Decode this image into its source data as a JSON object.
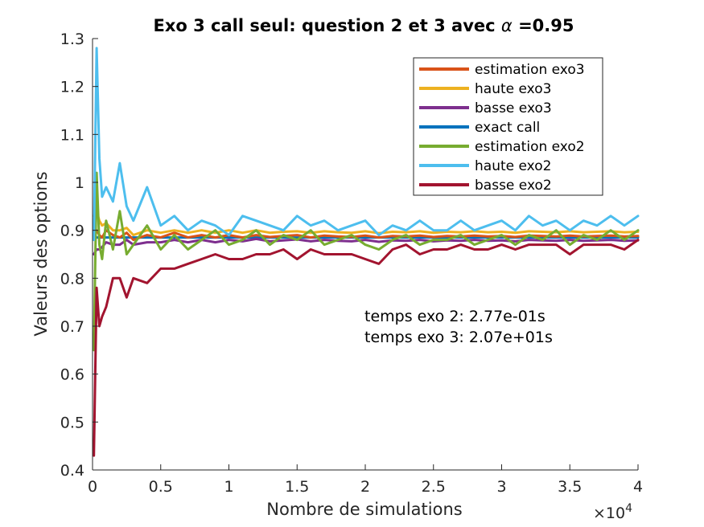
{
  "chart_data": {
    "type": "line",
    "title_main": "Exo 3 call seul: question 2 et 3 avec ",
    "title_symbol": "α",
    "title_tail": " =0.95",
    "xlabel": "Nombre de simulations",
    "ylabel": "Valeurs des options",
    "x_multiplier_base": "×10",
    "x_multiplier_exp": "4",
    "xlim": [
      0,
      40000
    ],
    "ylim": [
      0.4,
      1.3
    ],
    "x_ticks": [
      0,
      5000,
      10000,
      15000,
      20000,
      25000,
      30000,
      35000,
      40000
    ],
    "x_tick_labels": [
      "0",
      "0.5",
      "1",
      "1.5",
      "2",
      "2.5",
      "3",
      "3.5",
      "4"
    ],
    "y_ticks": [
      0.4,
      0.5,
      0.6,
      0.7,
      0.8,
      0.9,
      1.0,
      1.1,
      1.2,
      1.3
    ],
    "y_tick_labels": [
      "0.4",
      "0.5",
      "0.6",
      "0.7",
      "0.8",
      "0.9",
      "1",
      "1.1",
      "1.2",
      "1.3"
    ],
    "grid": false,
    "legend_position": "top-right",
    "annotations": [
      "temps exo 2: 2.77e-01s",
      "temps exo 3: 2.07e+01s"
    ],
    "x": [
      100,
      300,
      500,
      700,
      1000,
      1500,
      2000,
      2500,
      3000,
      4000,
      5000,
      6000,
      7000,
      8000,
      9000,
      10000,
      11000,
      12000,
      13000,
      14000,
      15000,
      16000,
      17000,
      18000,
      19000,
      20000,
      21000,
      22000,
      23000,
      24000,
      25000,
      26000,
      27000,
      28000,
      29000,
      30000,
      31000,
      32000,
      33000,
      34000,
      35000,
      36000,
      37000,
      38000,
      39000,
      40000
    ],
    "series": [
      {
        "name": "estimation exo3",
        "color": "#D95319",
        "values": [
          0.88,
          0.9,
          0.89,
          0.885,
          0.9,
          0.89,
          0.885,
          0.895,
          0.88,
          0.89,
          0.885,
          0.895,
          0.885,
          0.89,
          0.885,
          0.89,
          0.885,
          0.89,
          0.886,
          0.888,
          0.89,
          0.885,
          0.889,
          0.887,
          0.886,
          0.889,
          0.885,
          0.888,
          0.887,
          0.889,
          0.886,
          0.888,
          0.887,
          0.889,
          0.887,
          0.888,
          0.886,
          0.889,
          0.888,
          0.887,
          0.889,
          0.887,
          0.888,
          0.889,
          0.887,
          0.888
        ]
      },
      {
        "name": "haute exo3",
        "color": "#EDB120",
        "values": [
          0.93,
          0.94,
          0.92,
          0.91,
          0.915,
          0.9,
          0.9,
          0.905,
          0.89,
          0.9,
          0.895,
          0.9,
          0.895,
          0.9,
          0.895,
          0.9,
          0.895,
          0.9,
          0.895,
          0.897,
          0.898,
          0.895,
          0.898,
          0.896,
          0.895,
          0.898,
          0.894,
          0.897,
          0.896,
          0.898,
          0.895,
          0.897,
          0.896,
          0.898,
          0.896,
          0.897,
          0.895,
          0.898,
          0.897,
          0.896,
          0.898,
          0.896,
          0.897,
          0.898,
          0.896,
          0.897
        ]
      },
      {
        "name": "basse exo3",
        "color": "#7E2F8E",
        "values": [
          0.85,
          0.86,
          0.86,
          0.865,
          0.875,
          0.87,
          0.87,
          0.88,
          0.87,
          0.875,
          0.875,
          0.88,
          0.875,
          0.88,
          0.875,
          0.88,
          0.877,
          0.882,
          0.877,
          0.879,
          0.881,
          0.877,
          0.88,
          0.878,
          0.877,
          0.88,
          0.876,
          0.879,
          0.878,
          0.88,
          0.877,
          0.879,
          0.878,
          0.88,
          0.878,
          0.879,
          0.877,
          0.88,
          0.879,
          0.878,
          0.88,
          0.878,
          0.879,
          0.88,
          0.878,
          0.879
        ]
      },
      {
        "name": "exact call",
        "color": "#0072BD",
        "values": [
          0.885,
          0.885,
          0.885,
          0.885,
          0.885,
          0.885,
          0.885,
          0.885,
          0.885,
          0.885,
          0.885,
          0.885,
          0.885,
          0.885,
          0.885,
          0.885,
          0.885,
          0.885,
          0.885,
          0.885,
          0.885,
          0.885,
          0.885,
          0.885,
          0.885,
          0.885,
          0.885,
          0.885,
          0.885,
          0.885,
          0.885,
          0.885,
          0.885,
          0.885,
          0.885,
          0.885,
          0.885,
          0.885,
          0.885,
          0.885,
          0.885,
          0.885,
          0.885,
          0.885,
          0.885,
          0.885
        ]
      },
      {
        "name": "estimation exo2",
        "color": "#77AC30",
        "values": [
          0.65,
          1.02,
          0.87,
          0.84,
          0.92,
          0.86,
          0.94,
          0.85,
          0.87,
          0.91,
          0.86,
          0.89,
          0.86,
          0.88,
          0.9,
          0.87,
          0.88,
          0.9,
          0.87,
          0.89,
          0.88,
          0.9,
          0.87,
          0.88,
          0.89,
          0.87,
          0.86,
          0.88,
          0.89,
          0.87,
          0.88,
          0.88,
          0.89,
          0.87,
          0.88,
          0.89,
          0.87,
          0.89,
          0.88,
          0.9,
          0.87,
          0.89,
          0.88,
          0.9,
          0.88,
          0.9
        ]
      },
      {
        "name": "haute exo2",
        "color": "#4DBEEE",
        "values": [
          0.88,
          1.28,
          1.05,
          0.97,
          0.99,
          0.96,
          1.04,
          0.95,
          0.92,
          0.99,
          0.91,
          0.93,
          0.9,
          0.92,
          0.91,
          0.89,
          0.93,
          0.92,
          0.91,
          0.9,
          0.93,
          0.91,
          0.92,
          0.9,
          0.91,
          0.92,
          0.89,
          0.91,
          0.9,
          0.92,
          0.9,
          0.9,
          0.92,
          0.9,
          0.91,
          0.92,
          0.9,
          0.93,
          0.91,
          0.92,
          0.9,
          0.92,
          0.91,
          0.93,
          0.91,
          0.93
        ]
      },
      {
        "name": "basse exo2",
        "color": "#A2142F",
        "values": [
          0.43,
          0.78,
          0.7,
          0.72,
          0.74,
          0.8,
          0.8,
          0.76,
          0.8,
          0.79,
          0.82,
          0.82,
          0.83,
          0.84,
          0.85,
          0.84,
          0.84,
          0.85,
          0.85,
          0.86,
          0.84,
          0.86,
          0.85,
          0.85,
          0.85,
          0.84,
          0.83,
          0.86,
          0.87,
          0.85,
          0.86,
          0.86,
          0.87,
          0.86,
          0.86,
          0.87,
          0.86,
          0.87,
          0.87,
          0.87,
          0.85,
          0.87,
          0.87,
          0.87,
          0.86,
          0.88
        ]
      }
    ]
  }
}
